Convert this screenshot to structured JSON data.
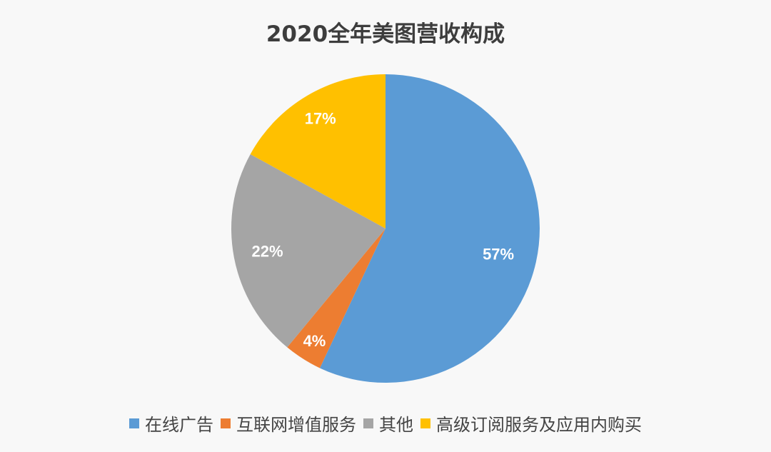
{
  "chart_data": {
    "type": "pie",
    "title": "2020全年美图营收构成",
    "categories": [
      "在线广告",
      "互联网增值服务",
      "其他",
      "高级订阅服务及应用内购买"
    ],
    "values": [
      57,
      4,
      22,
      17
    ],
    "labels": [
      "57%",
      "4%",
      "22%",
      "17%"
    ],
    "colors": [
      "#5b9bd5",
      "#ed7d31",
      "#a5a5a5",
      "#ffc000"
    ],
    "legend": "bottom",
    "start": "top, clockwise"
  }
}
